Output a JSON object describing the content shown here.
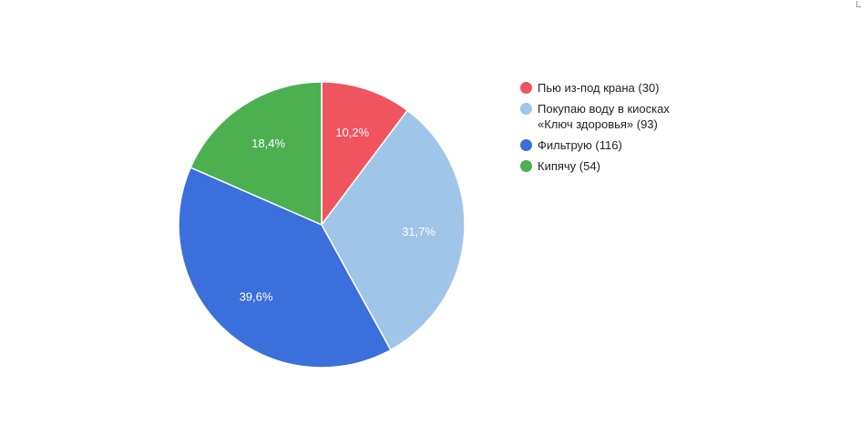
{
  "chart_data": {
    "type": "pie",
    "title": "",
    "slices": [
      {
        "label": "Пью из-под крана",
        "count": 30,
        "count_text": "(30)",
        "percent": 10.2,
        "percent_text": "10,2%",
        "color": "#f0545e"
      },
      {
        "label": "Покупаю воду в киосках «Ключ здоровья»",
        "line1": "Покупаю воду в киосках",
        "line2": "«Ключ здоровья» (93)",
        "count": 93,
        "count_text": "(93)",
        "percent": 31.7,
        "percent_text": "31,7%",
        "color": "#9fc5e8"
      },
      {
        "label": "Фильтрую",
        "count": 116,
        "count_text": "(116)",
        "percent": 39.6,
        "percent_text": "39,6%",
        "color": "#3b6fdb"
      },
      {
        "label": "Кипячу",
        "count": 54,
        "count_text": "(54)",
        "percent": 18.4,
        "percent_text": "18,4%",
        "color": "#4caf50"
      }
    ],
    "legend_position": "right",
    "start_angle": "top, clockwise"
  },
  "legend": {
    "item0": "Пью из-под крана (30)",
    "item1_line1": "Покупаю воду в киосках",
    "item1_line2": "«Ключ здоровья» (93)",
    "item2": "Фильтрую (116)",
    "item3": "Кипячу (54)"
  }
}
